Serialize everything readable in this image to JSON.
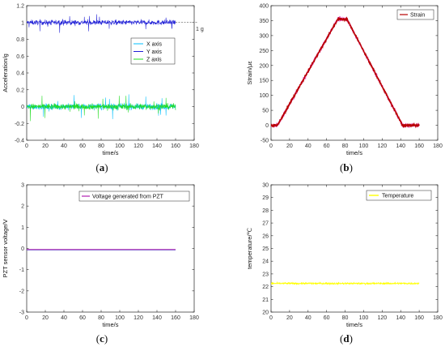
{
  "chart_data": [
    {
      "panel": "(a)",
      "type": "line",
      "xlabel": "time/s",
      "ylabel": "Acceleration/g",
      "xlim": [
        0,
        180
      ],
      "ylim": [
        -0.4,
        1.2
      ],
      "xticks": [
        "0",
        "20",
        "40",
        "60",
        "80",
        "100",
        "120",
        "140",
        "160",
        "180"
      ],
      "yticks": [
        "-0.4",
        "-0.2",
        "0",
        "0.2",
        "0.4",
        "0.6",
        "0.8",
        "1",
        "1.2"
      ],
      "annotation": "1 g",
      "annotation_y": 1.0,
      "legend_placement": "center-right",
      "colors": {
        "X axis": "#00bfff",
        "Y axis": "#1f1fd6",
        "Z axis": "#22dd22"
      },
      "series": [
        {
          "name": "X axis",
          "t_range": [
            0,
            160
          ],
          "center": 0.0,
          "noise": 0.06
        },
        {
          "name": "Y axis",
          "t_range": [
            0,
            160
          ],
          "center": 1.0,
          "noise": 0.05
        },
        {
          "name": "Z axis",
          "t_range": [
            0,
            160
          ],
          "center": 0.0,
          "noise": 0.06
        }
      ]
    },
    {
      "panel": "(b)",
      "type": "line",
      "xlabel": "time/s",
      "ylabel": "Strain/με",
      "xlim": [
        0,
        180
      ],
      "ylim": [
        -50,
        400
      ],
      "xticks": [
        "0",
        "20",
        "40",
        "60",
        "80",
        "100",
        "120",
        "140",
        "160",
        "180"
      ],
      "yticks": [
        "-50",
        "0",
        "50",
        "100",
        "150",
        "200",
        "250",
        "300",
        "350",
        "400"
      ],
      "legend_placement": "top-right",
      "colors": {
        "Strain": "#b80000",
        "band": "#ee66cc"
      },
      "series": [
        {
          "name": "Strain",
          "x": [
            0,
            7,
            72,
            82,
            142,
            160
          ],
          "y": [
            0,
            0,
            355,
            355,
            0,
            0
          ]
        }
      ]
    },
    {
      "panel": "(c)",
      "type": "line",
      "xlabel": "time/s",
      "ylabel": "PZT sensor voltage/V",
      "xlim": [
        0,
        180
      ],
      "ylim": [
        -3,
        3
      ],
      "xticks": [
        "0",
        "20",
        "40",
        "60",
        "80",
        "100",
        "120",
        "140",
        "160",
        "180"
      ],
      "yticks": [
        "-3",
        "-2",
        "-1",
        "0",
        "1",
        "2",
        "3"
      ],
      "legend_placement": "top-right",
      "colors": {
        "Voltage generated from PZT": "#b020b0",
        "trace2": "#2a60d8"
      },
      "series": [
        {
          "name": "Voltage generated from PZT",
          "x": [
            0,
            160
          ],
          "y": [
            -0.05,
            -0.05
          ]
        }
      ]
    },
    {
      "panel": "(d)",
      "type": "line",
      "xlabel": "time/s",
      "ylabel": "temperature/℃",
      "xlim": [
        0,
        180
      ],
      "ylim": [
        20,
        30
      ],
      "xticks": [
        "0",
        "20",
        "40",
        "60",
        "80",
        "100",
        "120",
        "140",
        "160",
        "180"
      ],
      "yticks": [
        "20",
        "21",
        "22",
        "23",
        "24",
        "25",
        "26",
        "27",
        "28",
        "29",
        "30"
      ],
      "legend_placement": "top-right",
      "colors": {
        "Temperature": "#ffff00"
      },
      "series": [
        {
          "name": "Temperature",
          "t_range": [
            0,
            160
          ],
          "center": 22.25,
          "noise": 0.12
        }
      ]
    }
  ],
  "captions": [
    "(a)",
    "(b)",
    "(c)",
    "(d)"
  ]
}
